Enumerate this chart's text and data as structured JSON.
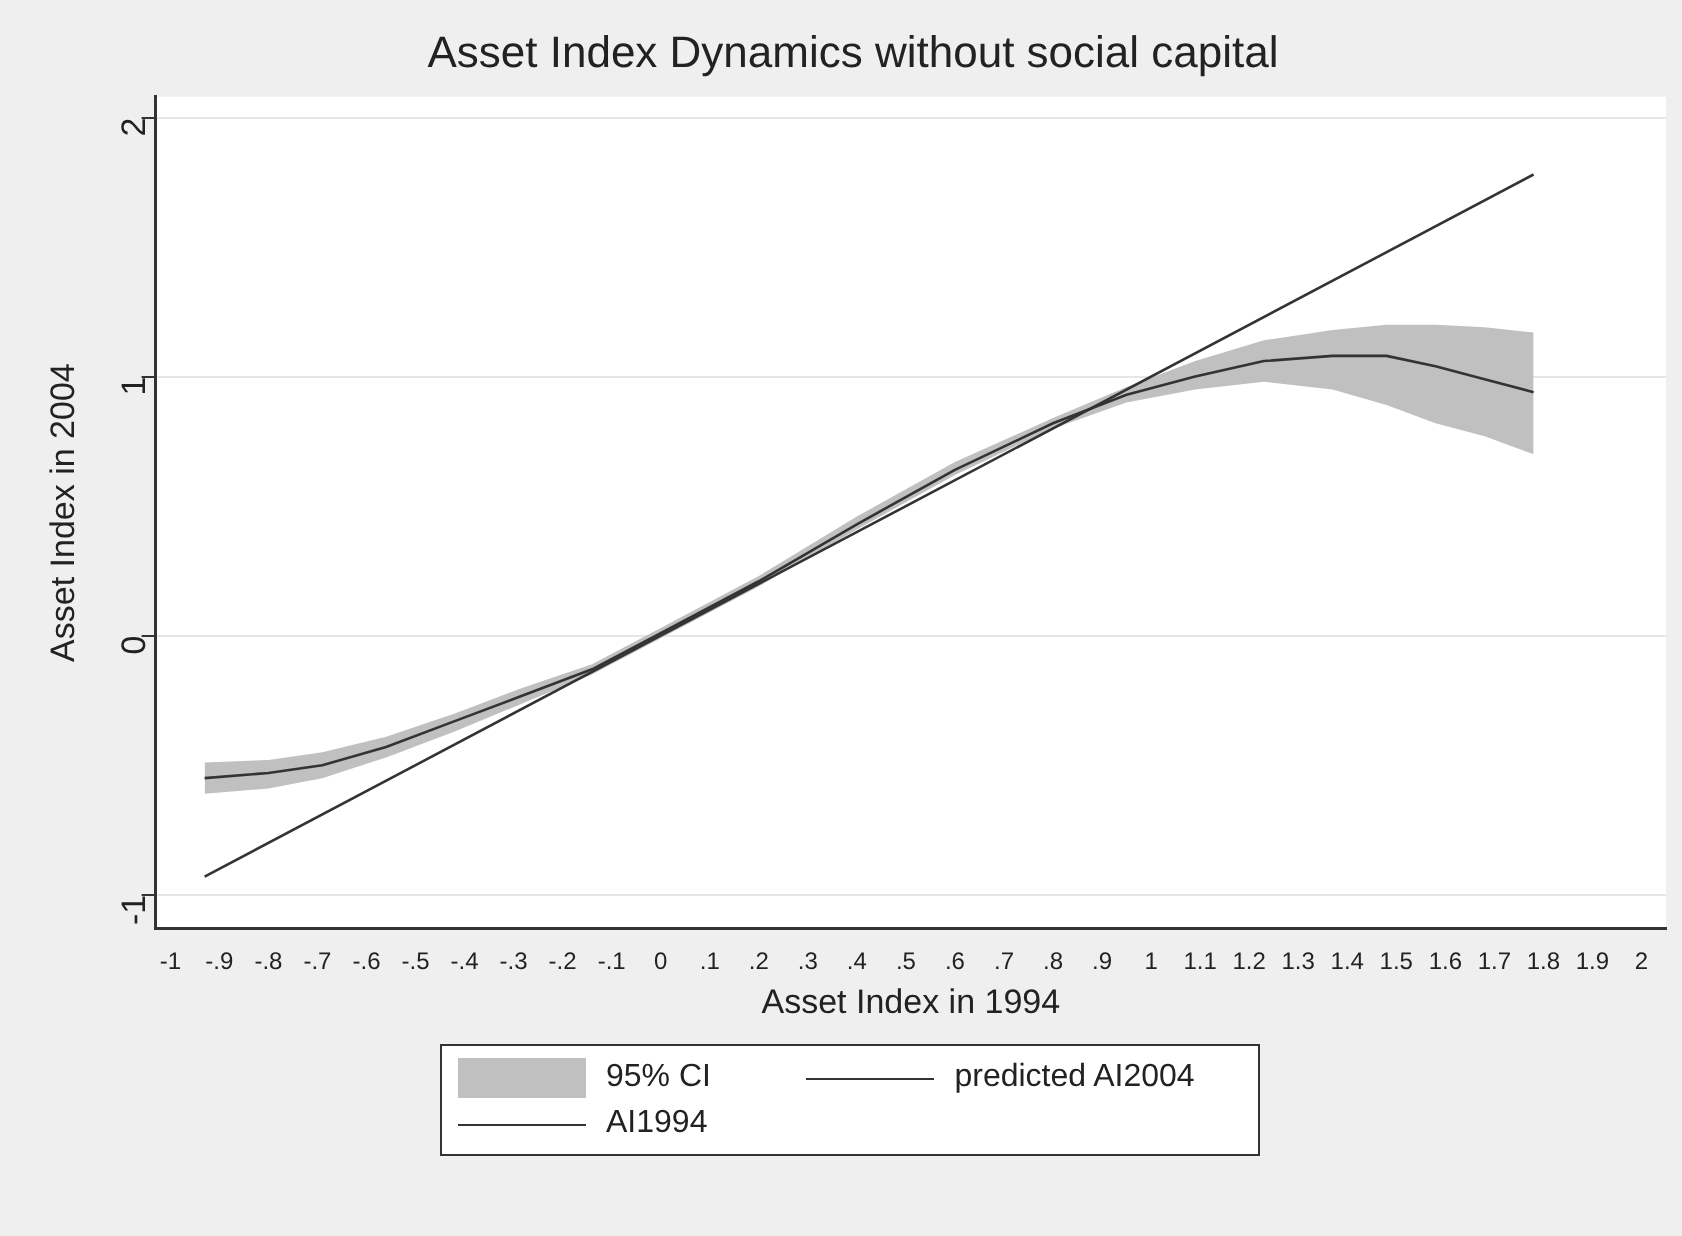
{
  "chart_data": {
    "type": "line",
    "title": "Asset Index Dynamics without social capital",
    "xlabel": "Asset Index in 1994",
    "ylabel": "Asset Index in 2004",
    "xlim": [
      -1.03,
      2.05
    ],
    "ylim": [
      -1.13,
      2.08
    ],
    "xticks": [
      -1,
      {
        "value": -0.9,
        "label": "-.9"
      },
      {
        "value": -0.8,
        "label": "-.8"
      },
      {
        "value": -0.7,
        "label": "-.7"
      },
      {
        "value": -0.6,
        "label": "-.6"
      },
      {
        "value": -0.5,
        "label": "-.5"
      },
      {
        "value": -0.4,
        "label": "-.4"
      },
      {
        "value": -0.3,
        "label": "-.3"
      },
      {
        "value": -0.2,
        "label": "-.2"
      },
      {
        "value": -0.1,
        "label": "-.1"
      },
      0,
      {
        "value": 0.1,
        "label": ".1"
      },
      {
        "value": 0.2,
        "label": ".2"
      },
      {
        "value": 0.3,
        "label": ".3"
      },
      {
        "value": 0.4,
        "label": ".4"
      },
      {
        "value": 0.5,
        "label": ".5"
      },
      {
        "value": 0.6,
        "label": ".6"
      },
      {
        "value": 0.7,
        "label": ".7"
      },
      {
        "value": 0.8,
        "label": ".8"
      },
      {
        "value": 0.9,
        "label": ".9"
      },
      1,
      1.1,
      1.2,
      1.3,
      1.4,
      1.5,
      1.6,
      1.7,
      1.8,
      1.9,
      2
    ],
    "yticks": [
      -1,
      0,
      1,
      2
    ],
    "grid": "y",
    "legend": "bottom",
    "annotations": [
      "95% CI"
    ],
    "series": [
      {
        "name": "predicted AI2004",
        "color": "#333333",
        "x": [
          -0.93,
          -0.8,
          -0.69,
          -0.56,
          -0.42,
          -0.28,
          -0.14,
          0,
          0.2,
          0.4,
          0.6,
          0.8,
          0.95,
          1.09,
          1.23,
          1.37,
          1.48,
          1.58,
          1.68,
          1.78
        ],
        "values": [
          -0.55,
          -0.53,
          -0.5,
          -0.43,
          -0.33,
          -0.23,
          -0.13,
          0.01,
          0.21,
          0.43,
          0.64,
          0.82,
          0.93,
          1.0,
          1.06,
          1.08,
          1.08,
          1.04,
          0.99,
          0.94
        ],
        "lower": [
          -0.61,
          -0.59,
          -0.55,
          -0.47,
          -0.37,
          -0.26,
          -0.15,
          -0.01,
          0.19,
          0.41,
          0.62,
          0.8,
          0.9,
          0.95,
          0.98,
          0.95,
          0.89,
          0.82,
          0.77,
          0.7
        ],
        "upper": [
          -0.49,
          -0.48,
          -0.45,
          -0.39,
          -0.3,
          -0.2,
          -0.11,
          0.03,
          0.23,
          0.46,
          0.67,
          0.84,
          0.96,
          1.06,
          1.14,
          1.18,
          1.2,
          1.2,
          1.19,
          1.17
        ]
      },
      {
        "name": "AI1994",
        "color": "#333333",
        "x": [
          -0.93,
          1.78
        ],
        "values": [
          -0.93,
          1.78
        ]
      }
    ]
  }
}
